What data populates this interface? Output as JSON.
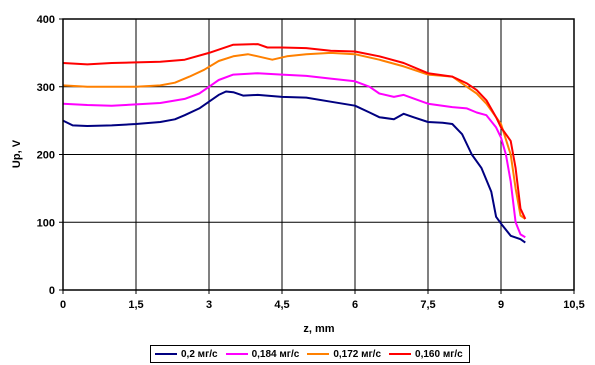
{
  "chart_data": {
    "type": "line",
    "title": "",
    "xlabel": "z, mm",
    "ylabel": "Up, V",
    "xlim": [
      0,
      10.5
    ],
    "ylim": [
      0,
      400
    ],
    "x_ticks": [
      "0",
      "1,5",
      "3",
      "4,5",
      "6",
      "7,5",
      "9",
      "10,5"
    ],
    "x_tick_values": [
      0,
      1.5,
      3,
      4.5,
      6,
      7.5,
      9,
      10.5
    ],
    "y_ticks": [
      "0",
      "100",
      "200",
      "300",
      "400"
    ],
    "y_tick_values": [
      0,
      100,
      200,
      300,
      400
    ],
    "grid": true,
    "legend_position": "bottom",
    "series": [
      {
        "name": "0,2 мг/с",
        "color": "#000080",
        "points": [
          [
            0,
            250
          ],
          [
            0.2,
            243
          ],
          [
            0.5,
            242
          ],
          [
            1.0,
            243
          ],
          [
            1.5,
            245
          ],
          [
            2.0,
            248
          ],
          [
            2.3,
            252
          ],
          [
            2.5,
            258
          ],
          [
            2.8,
            268
          ],
          [
            3.0,
            278
          ],
          [
            3.2,
            288
          ],
          [
            3.35,
            293
          ],
          [
            3.5,
            292
          ],
          [
            3.7,
            287
          ],
          [
            4.0,
            288
          ],
          [
            4.5,
            285
          ],
          [
            5.0,
            284
          ],
          [
            5.5,
            278
          ],
          [
            6.0,
            272
          ],
          [
            6.3,
            262
          ],
          [
            6.5,
            255
          ],
          [
            6.8,
            252
          ],
          [
            7.0,
            260
          ],
          [
            7.2,
            255
          ],
          [
            7.5,
            248
          ],
          [
            7.8,
            247
          ],
          [
            8.0,
            245
          ],
          [
            8.2,
            230
          ],
          [
            8.4,
            200
          ],
          [
            8.6,
            180
          ],
          [
            8.8,
            145
          ],
          [
            8.9,
            108
          ],
          [
            9.0,
            98
          ],
          [
            9.2,
            80
          ],
          [
            9.4,
            75
          ],
          [
            9.5,
            70
          ]
        ]
      },
      {
        "name": "0,184 мг/с",
        "color": "#ff00ff",
        "points": [
          [
            0,
            275
          ],
          [
            0.5,
            273
          ],
          [
            1.0,
            272
          ],
          [
            1.5,
            274
          ],
          [
            2.0,
            276
          ],
          [
            2.5,
            282
          ],
          [
            2.8,
            290
          ],
          [
            3.0,
            300
          ],
          [
            3.2,
            310
          ],
          [
            3.5,
            318
          ],
          [
            4.0,
            320
          ],
          [
            4.5,
            318
          ],
          [
            5.0,
            316
          ],
          [
            5.5,
            312
          ],
          [
            6.0,
            308
          ],
          [
            6.3,
            300
          ],
          [
            6.5,
            290
          ],
          [
            6.8,
            285
          ],
          [
            7.0,
            288
          ],
          [
            7.5,
            275
          ],
          [
            8.0,
            270
          ],
          [
            8.3,
            268
          ],
          [
            8.5,
            262
          ],
          [
            8.7,
            258
          ],
          [
            8.9,
            240
          ],
          [
            9.0,
            225
          ],
          [
            9.1,
            200
          ],
          [
            9.2,
            160
          ],
          [
            9.3,
            100
          ],
          [
            9.4,
            82
          ],
          [
            9.5,
            78
          ]
        ]
      },
      {
        "name": "0,172 мг/с",
        "color": "#ff8000",
        "points": [
          [
            0,
            302
          ],
          [
            0.5,
            300
          ],
          [
            1.0,
            300
          ],
          [
            1.5,
            300
          ],
          [
            2.0,
            302
          ],
          [
            2.3,
            306
          ],
          [
            2.6,
            315
          ],
          [
            2.9,
            325
          ],
          [
            3.2,
            338
          ],
          [
            3.5,
            345
          ],
          [
            3.8,
            348
          ],
          [
            4.0,
            345
          ],
          [
            4.3,
            340
          ],
          [
            4.6,
            345
          ],
          [
            5.0,
            348
          ],
          [
            5.5,
            350
          ],
          [
            6.0,
            348
          ],
          [
            6.5,
            340
          ],
          [
            7.0,
            330
          ],
          [
            7.5,
            318
          ],
          [
            8.0,
            315
          ],
          [
            8.3,
            300
          ],
          [
            8.5,
            290
          ],
          [
            8.7,
            275
          ],
          [
            8.9,
            255
          ],
          [
            9.0,
            245
          ],
          [
            9.2,
            200
          ],
          [
            9.3,
            150
          ],
          [
            9.4,
            110
          ],
          [
            9.5,
            105
          ]
        ]
      },
      {
        "name": "0,160 мг/с",
        "color": "#ff0000",
        "points": [
          [
            0,
            335
          ],
          [
            0.5,
            333
          ],
          [
            1.0,
            335
          ],
          [
            1.5,
            336
          ],
          [
            2.0,
            337
          ],
          [
            2.5,
            340
          ],
          [
            3.0,
            350
          ],
          [
            3.5,
            362
          ],
          [
            4.0,
            363
          ],
          [
            4.2,
            358
          ],
          [
            4.5,
            358
          ],
          [
            5.0,
            357
          ],
          [
            5.5,
            353
          ],
          [
            6.0,
            352
          ],
          [
            6.5,
            345
          ],
          [
            7.0,
            335
          ],
          [
            7.5,
            320
          ],
          [
            8.0,
            315
          ],
          [
            8.3,
            305
          ],
          [
            8.5,
            295
          ],
          [
            8.7,
            280
          ],
          [
            8.9,
            255
          ],
          [
            9.0,
            240
          ],
          [
            9.1,
            230
          ],
          [
            9.2,
            220
          ],
          [
            9.3,
            180
          ],
          [
            9.4,
            120
          ],
          [
            9.5,
            105
          ]
        ]
      }
    ]
  }
}
